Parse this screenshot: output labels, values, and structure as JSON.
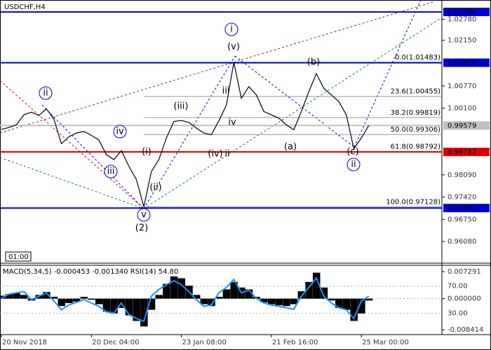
{
  "chart_data": [
    {
      "type": "line",
      "title": "USDCHF,H4",
      "time_label": "01:00",
      "color": "#000000",
      "ylim": [
        0.9545,
        1.0336
      ],
      "yticks": [
        {
          "value": 1.0278,
          "label": "1.02780"
        },
        {
          "value": 1.0215,
          "label": "1.02150"
        },
        {
          "value": 1.0077,
          "label": "1.00770"
        },
        {
          "value": 1.001,
          "label": "1.00100"
        },
        {
          "value": 0.9809,
          "label": "0.98090"
        },
        {
          "value": 0.9742,
          "label": "0.97420"
        },
        {
          "value": 0.9675,
          "label": "0.96750"
        },
        {
          "value": 0.9608,
          "label": "0.96080"
        }
      ],
      "hlines": [
        {
          "value": 1.03,
          "label": "1.03000",
          "color": "#0000cc"
        },
        {
          "value": 1.0147,
          "label": "1.01470",
          "color": "#0000cc"
        },
        {
          "value": 0.99579,
          "label": "0.99579",
          "color": "#c0c0c0"
        },
        {
          "value": 0.98782,
          "label": "0.98782",
          "color": "#dd0000"
        },
        {
          "value": 0.97091,
          "label": "0.97091",
          "color": "#0000cc"
        }
      ],
      "fib_levels": [
        {
          "value": 1.01483,
          "label": "0.0(1.01483)"
        },
        {
          "value": 1.00455,
          "label": "23.6(1.00455)"
        },
        {
          "value": 0.99819,
          "label": "38.2(0.99819)"
        },
        {
          "value": 0.99306,
          "label": "50.0(0.99306)"
        },
        {
          "value": 0.98792,
          "label": "61.8(0.98792)"
        },
        {
          "value": 0.97128,
          "label": "100.0(0.97128)"
        }
      ],
      "annotations": [
        {
          "text": "i",
          "color": "#0000cc",
          "circle": true
        },
        {
          "text": "ii",
          "color": "#0000cc",
          "circle": true
        },
        {
          "text": "iii",
          "color": "#0000cc",
          "circle": true
        },
        {
          "text": "iv",
          "color": "#0000cc",
          "circle": true
        },
        {
          "text": "v",
          "color": "#0000cc",
          "circle": true
        },
        {
          "text": "(2)",
          "color": "#118811",
          "circle": false
        },
        {
          "text": "(i)",
          "color": "#dd0000",
          "circle": false
        },
        {
          "text": "(ii)",
          "color": "#dd0000",
          "circle": false
        },
        {
          "text": "(iii)",
          "color": "#dd0000",
          "circle": false
        },
        {
          "text": "(iv)",
          "color": "#dd0000",
          "circle": false
        },
        {
          "text": "ii",
          "color": "#888888",
          "circle": false
        },
        {
          "text": "(v)",
          "color": "#dd0000",
          "circle": false
        },
        {
          "text": "iii",
          "color": "#888888",
          "circle": false
        },
        {
          "text": "iv",
          "color": "#888888",
          "circle": false
        },
        {
          "text": "(a)",
          "color": "#dd0000",
          "circle": false
        },
        {
          "text": "(b)",
          "color": "#dd0000",
          "circle": false
        },
        {
          "text": "(c)",
          "color": "#dd0000",
          "circle": false
        },
        {
          "text": "ii",
          "color": "#0000cc",
          "circle": true
        }
      ],
      "values": [
        0.9946,
        0.9952,
        0.996,
        0.999,
        0.9998,
        0.9988,
        1.0008,
        0.9977,
        0.9903,
        0.9924,
        0.9935,
        0.994,
        0.9928,
        0.9914,
        0.987,
        0.9855,
        0.9882,
        0.9835,
        0.9795,
        0.9713,
        0.9819,
        0.9855,
        0.992,
        0.997,
        0.9973,
        0.9967,
        0.995,
        0.9935,
        0.993,
        0.9972,
        1.0019,
        1.0148,
        1.004,
        1.0075,
        1.005,
        1.0,
        0.999,
        0.998,
        0.996,
        0.9945,
        1.0,
        1.006,
        1.0114,
        1.007,
        1.005,
        1.003,
        0.999,
        0.9888,
        0.992,
        0.9958
      ]
    },
    {
      "type": "macd",
      "title": "MACD(5,34,5) -0.000453 -0.001340 RSI(14) 54.80",
      "grid": true,
      "categories": [
        "20 Nov 2018",
        null,
        null,
        null,
        null,
        null,
        null,
        null,
        null,
        null,
        null,
        null,
        "20 Dec 04:00",
        null,
        null,
        null,
        null,
        null,
        null,
        null,
        null,
        null,
        null,
        null,
        "23 Jan 08:00",
        null,
        null,
        null,
        null,
        null,
        null,
        null,
        null,
        null,
        null,
        null,
        "21 Feb 16:00",
        null,
        null,
        null,
        null,
        null,
        null,
        null,
        null,
        null,
        null,
        null,
        "25 Mar 00:00",
        null
      ],
      "ylim": [
        -0.0097,
        0.009
      ],
      "yticks": [
        {
          "value": 0.007291,
          "label": "0.007291"
        },
        {
          "value": 0,
          "label": "0.000000"
        },
        {
          "value": -0.008414,
          "label": "-0.008414"
        }
      ],
      "y2lim": [
        -1.8,
        100.8
      ],
      "y2ticks": [
        {
          "value": 70,
          "label": "70.00"
        },
        {
          "value": 30,
          "label": "30.00"
        }
      ],
      "series": [
        {
          "color": "#000000",
          "values": [
            0.0008,
            0.0012,
            0.0015,
            0.001,
            -0.0005,
            0.001,
            0.0018,
            0.0005,
            -0.002,
            -0.0012,
            -0.0008,
            0.0005,
            -0.0003,
            -0.0015,
            -0.0035,
            -0.004,
            -0.0025,
            -0.0045,
            -0.006,
            -0.0075,
            -0.003,
            0.001,
            0.004,
            0.006,
            0.0055,
            0.0035,
            0.001,
            -0.0015,
            -0.002,
            0.0005,
            0.0025,
            0.0045,
            0.003,
            0.0025,
            0.0005,
            -0.001,
            -0.0015,
            -0.0018,
            -0.002,
            -0.0015,
            0.002,
            0.0045,
            0.007,
            0.003,
            -0.0005,
            -0.0025,
            -0.003,
            -0.006,
            -0.004,
            -0.0005
          ]
        },
        {
          "color": "#1e90ff",
          "axis": "y2",
          "values": [
            52,
            58,
            60,
            62,
            50,
            55,
            60,
            48,
            35,
            42,
            46,
            50,
            45,
            40,
            32,
            30,
            45,
            28,
            22,
            18,
            55,
            65,
            72,
            78,
            72,
            62,
            50,
            40,
            42,
            60,
            68,
            80,
            60,
            64,
            52,
            45,
            42,
            40,
            38,
            36,
            55,
            68,
            82,
            55,
            45,
            38,
            35,
            22,
            48,
            55
          ]
        }
      ]
    }
  ]
}
